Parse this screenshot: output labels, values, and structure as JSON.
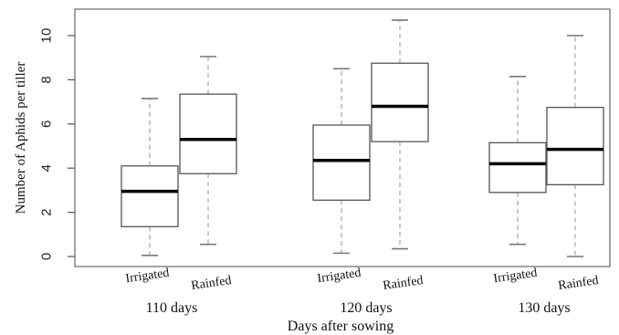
{
  "chart_data": {
    "type": "boxplot",
    "ylabel": "Number of Aphids per tiller",
    "xlabel": "Days after sowing",
    "ylim": [
      0,
      11
    ],
    "yticks": [
      0,
      2,
      4,
      6,
      8,
      10
    ],
    "groups": [
      {
        "label": "110 days",
        "boxes": [
          {
            "label": "Irrigated",
            "min": 0.05,
            "q1": 1.35,
            "median": 2.95,
            "q3": 4.1,
            "max": 7.15
          },
          {
            "label": "Rainfed",
            "min": 0.55,
            "q1": 3.75,
            "median": 5.3,
            "q3": 7.35,
            "max": 9.05
          }
        ]
      },
      {
        "label": "120 days",
        "boxes": [
          {
            "label": "Irrigated",
            "min": 0.15,
            "q1": 2.55,
            "median": 4.35,
            "q3": 5.95,
            "max": 8.5
          },
          {
            "label": "Rainfed",
            "min": 0.35,
            "q1": 5.2,
            "median": 6.8,
            "q3": 8.75,
            "max": 10.7
          }
        ]
      },
      {
        "label": "130 days",
        "boxes": [
          {
            "label": "Irrigated",
            "min": 0.55,
            "q1": 2.9,
            "median": 4.2,
            "q3": 5.15,
            "max": 8.15
          },
          {
            "label": "Rainfed",
            "min": 0.0,
            "q1": 3.25,
            "median": 4.85,
            "q3": 6.75,
            "max": 10.0
          }
        ]
      }
    ],
    "colors": {
      "box_fill": "#ffffff",
      "box_stroke": "#555555",
      "median": "#000000",
      "whisker": "#aaaaaa"
    }
  }
}
